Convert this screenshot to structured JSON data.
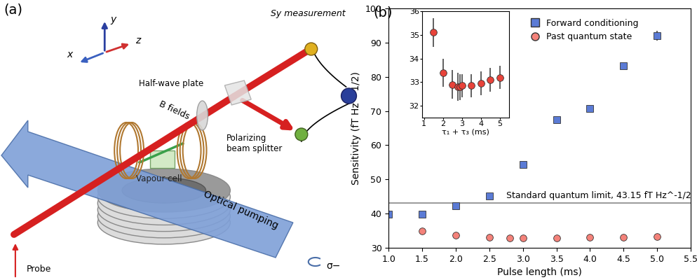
{
  "chart_data": [
    {
      "type": "scatter",
      "panel_label": "(b)",
      "x_label": "Pulse length (ms)",
      "y_label": "Sensitivity (fT Hz^-1/2)",
      "xlim": [
        1.0,
        5.5
      ],
      "xticks": [
        {
          "value": 1,
          "label": "1.0"
        },
        1.5,
        {
          "value": 2,
          "label": "2.0"
        },
        2.5,
        {
          "value": 3,
          "label": "3.0"
        },
        3.5,
        {
          "value": 4,
          "label": "4.0"
        },
        4.5,
        {
          "value": 5,
          "label": "5.0"
        },
        5.5
      ],
      "ylim": [
        30,
        100
      ],
      "yticks": [
        30,
        40,
        50,
        60,
        70,
        80,
        90,
        100
      ],
      "legend": "upper left",
      "series": [
        {
          "name": "Forward conditioning",
          "color": "#5b7bd5",
          "marker": "square",
          "x": [
            1.0,
            1.5,
            2.0,
            2.5,
            3.0,
            3.5,
            4.0,
            4.5,
            5.0
          ],
          "values": [
            39.8,
            39.9,
            42.2,
            45.2,
            54.3,
            67.5,
            70.7,
            83.2,
            92.0
          ],
          "errors": [
            0.5,
            0.5,
            0.5,
            0.5,
            0.6,
            0.6,
            0.8,
            0.8,
            1.5
          ]
        },
        {
          "name": "Past quantum state",
          "color": "#f4827a",
          "marker": "circle",
          "x": [
            1.5,
            2.0,
            2.5,
            2.8,
            3.0,
            3.5,
            4.0,
            4.5,
            5.0
          ],
          "values": [
            35.0,
            33.6,
            33.0,
            32.9,
            32.9,
            32.9,
            33.0,
            33.1,
            33.3
          ],
          "errors": [
            0.5,
            0.5,
            0.5,
            0.5,
            0.5,
            0.5,
            0.5,
            0.5,
            0.5
          ]
        }
      ],
      "reference_line": {
        "value": 43.15,
        "label": "Standard quantum limit, 43.15 fT Hz^-1/2"
      }
    },
    {
      "type": "scatter",
      "x_label": "τ₁ + τ₃ (ms)",
      "xlim": [
        0.9,
        5.5
      ],
      "xticks": [
        1,
        2,
        3,
        4,
        5
      ],
      "ylim": [
        31.5,
        36
      ],
      "yticks": [
        32,
        33,
        34,
        35,
        36
      ],
      "series": [
        {
          "color": "#e8433a",
          "marker": "circle",
          "x": [
            1.5,
            2.0,
            2.5,
            2.8,
            2.9,
            3.0,
            3.5,
            4.0,
            4.5,
            5.0
          ],
          "values": [
            35.1,
            33.4,
            32.9,
            32.8,
            32.8,
            32.85,
            32.85,
            32.95,
            33.1,
            33.2
          ],
          "errors": [
            0.6,
            0.6,
            0.6,
            0.6,
            0.55,
            0.5,
            0.5,
            0.5,
            0.5,
            0.5
          ]
        }
      ]
    }
  ],
  "diagram": {
    "panel_label": "(a)",
    "axis_x": "x",
    "axis_y": "y",
    "axis_z": "z",
    "measurement": "Sy measurement",
    "half_wave_plate": "Half-wave plate",
    "beam_splitter": "Polarizing\nbeam splitter",
    "b_fields": "B fields",
    "vapour_cell": "Vapour cell",
    "optical_pumping": "Optical pumping",
    "probe": "Probe",
    "polarization": "σ−"
  }
}
